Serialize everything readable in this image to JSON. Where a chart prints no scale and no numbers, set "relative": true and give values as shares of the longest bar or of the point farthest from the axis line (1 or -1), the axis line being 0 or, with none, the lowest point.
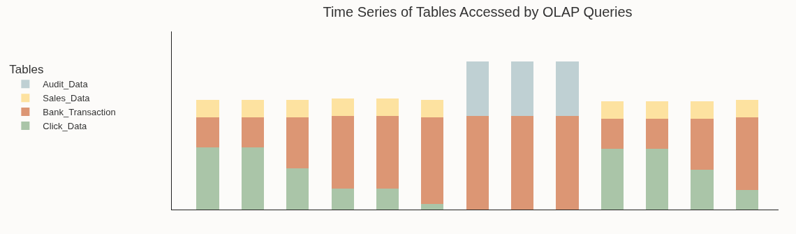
{
  "chart_data": {
    "type": "bar",
    "title": "Time Series of Tables Accessed by OLAP Queries",
    "legend_title": "Tables",
    "legend": "left",
    "stacked": true,
    "relative": true,
    "grid": false,
    "categories": [
      null,
      null,
      null,
      null,
      null,
      null,
      null,
      null,
      null,
      null,
      null,
      null,
      null
    ],
    "series": [
      {
        "name": "Click_Data",
        "color": "#aac5a8",
        "values": [
          0.42,
          0.42,
          0.28,
          0.14,
          0.14,
          0.04,
          null,
          null,
          null,
          0.41,
          0.41,
          0.27,
          0.13
        ]
      },
      {
        "name": "Bank_Transaction",
        "color": "#dc9674",
        "values": [
          0.2,
          0.2,
          0.34,
          0.49,
          0.49,
          0.58,
          0.63,
          0.63,
          0.63,
          0.2,
          0.2,
          0.34,
          0.49
        ]
      },
      {
        "name": "Sales_Data",
        "color": "#fde2a0",
        "values": [
          0.12,
          0.12,
          0.12,
          0.12,
          0.12,
          0.12,
          null,
          null,
          null,
          0.12,
          0.12,
          0.12,
          0.12
        ]
      },
      {
        "name": "Audit_Data",
        "color": "#bfd0d3",
        "values": [
          null,
          null,
          null,
          null,
          null,
          null,
          0.37,
          0.37,
          0.37,
          null,
          null,
          null,
          null
        ]
      }
    ]
  }
}
